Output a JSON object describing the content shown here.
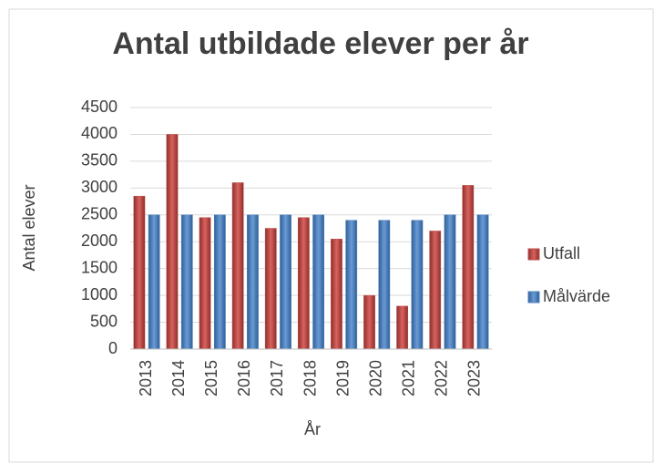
{
  "chart_data": {
    "type": "bar",
    "title": "Antal utbildade elever per år",
    "x_label": "År",
    "y_label": "Antal elever",
    "categories": [
      "2013",
      "2014",
      "2015",
      "2016",
      "2017",
      "2018",
      "2019",
      "2020",
      "2021",
      "2022",
      "2023"
    ],
    "series": [
      {
        "name": "Utfall",
        "color": "#c0504d",
        "values": [
          2850,
          4000,
          2450,
          3100,
          2250,
          2450,
          2050,
          1000,
          800,
          2200,
          3050
        ]
      },
      {
        "name": "Målvärde",
        "color": "#4f81bd",
        "values": [
          2500,
          2500,
          2500,
          2500,
          2500,
          2500,
          2400,
          2400,
          2400,
          2500,
          2500
        ]
      }
    ],
    "ylim": [
      0,
      4500
    ],
    "yticks": [
      0,
      500,
      1000,
      1500,
      2000,
      2500,
      3000,
      3500,
      4000,
      4500
    ],
    "grid": true,
    "legend": "right"
  }
}
